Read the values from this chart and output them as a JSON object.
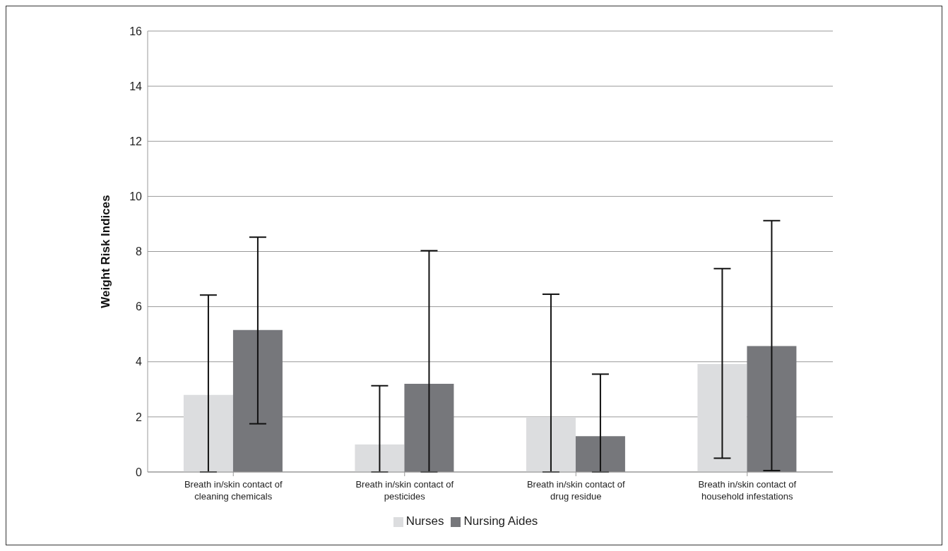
{
  "chart_data": {
    "type": "bar",
    "ylabel": "Weight Risk Indices",
    "categories": [
      "Breath in/skin contact of cleaning chemicals",
      "Breath in/skin contact of pesticides",
      "Breath in/skin contact of drug residue",
      "Breath in/skin contact of household infestations"
    ],
    "series": [
      {
        "name": "Nurses",
        "color": "#dcdddf",
        "values": [
          2.8,
          1.0,
          2.0,
          3.92
        ],
        "errors": [
          [
            0,
            6.42
          ],
          [
            0,
            3.13
          ],
          [
            0,
            6.45
          ],
          [
            0.5,
            7.38
          ]
        ]
      },
      {
        "name": "Nursing Aides",
        "color": "#76777b",
        "values": [
          5.15,
          3.2,
          1.3,
          4.57
        ],
        "errors": [
          [
            1.75,
            8.52
          ],
          [
            0,
            8.03
          ],
          [
            0,
            3.55
          ],
          [
            0.05,
            9.12
          ]
        ]
      }
    ],
    "ylim": [
      0,
      16
    ],
    "yticks": [
      0,
      2,
      4,
      6,
      8,
      10,
      12,
      14,
      16
    ],
    "grid": "y",
    "legend": "bottom"
  }
}
